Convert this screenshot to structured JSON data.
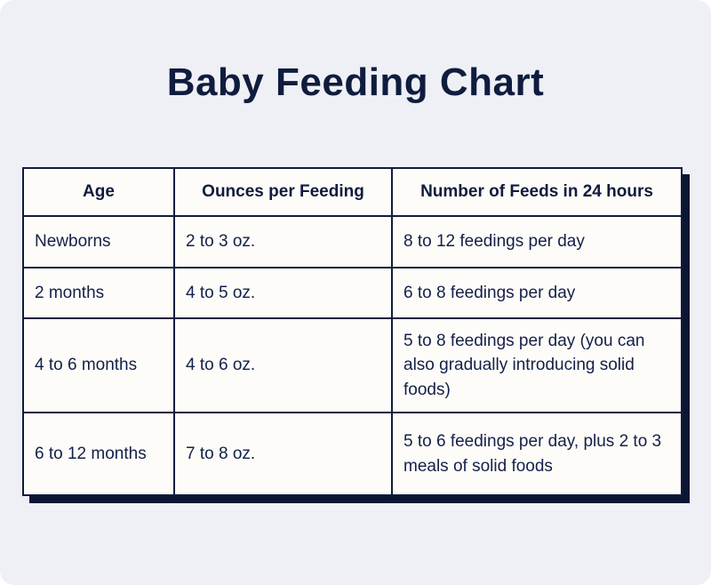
{
  "title": "Baby Feeding Chart",
  "colors": {
    "page_background": "#eef0f5",
    "cell_background": "#fdfcf8",
    "ink_navy": "#101c3e",
    "shadow_navy": "#0b1635"
  },
  "chart_data": {
    "type": "table",
    "title": "Baby Feeding Chart",
    "columns": [
      "Age",
      "Ounces per Feeding",
      "Number of Feeds in 24 hours"
    ],
    "rows": [
      [
        "Newborns",
        "2 to 3 oz.",
        "8 to 12 feedings per day"
      ],
      [
        "2 months",
        "4 to 5 oz.",
        "6 to 8 feedings per day"
      ],
      [
        "4 to 6 months",
        "4 to 6 oz.",
        "5 to 8 feedings per day (you can also gradually introducing solid foods)"
      ],
      [
        "6 to 12 months",
        "7 to 8 oz.",
        "5 to 6 feedings per day, plus 2 to 3 meals of solid foods"
      ]
    ]
  }
}
